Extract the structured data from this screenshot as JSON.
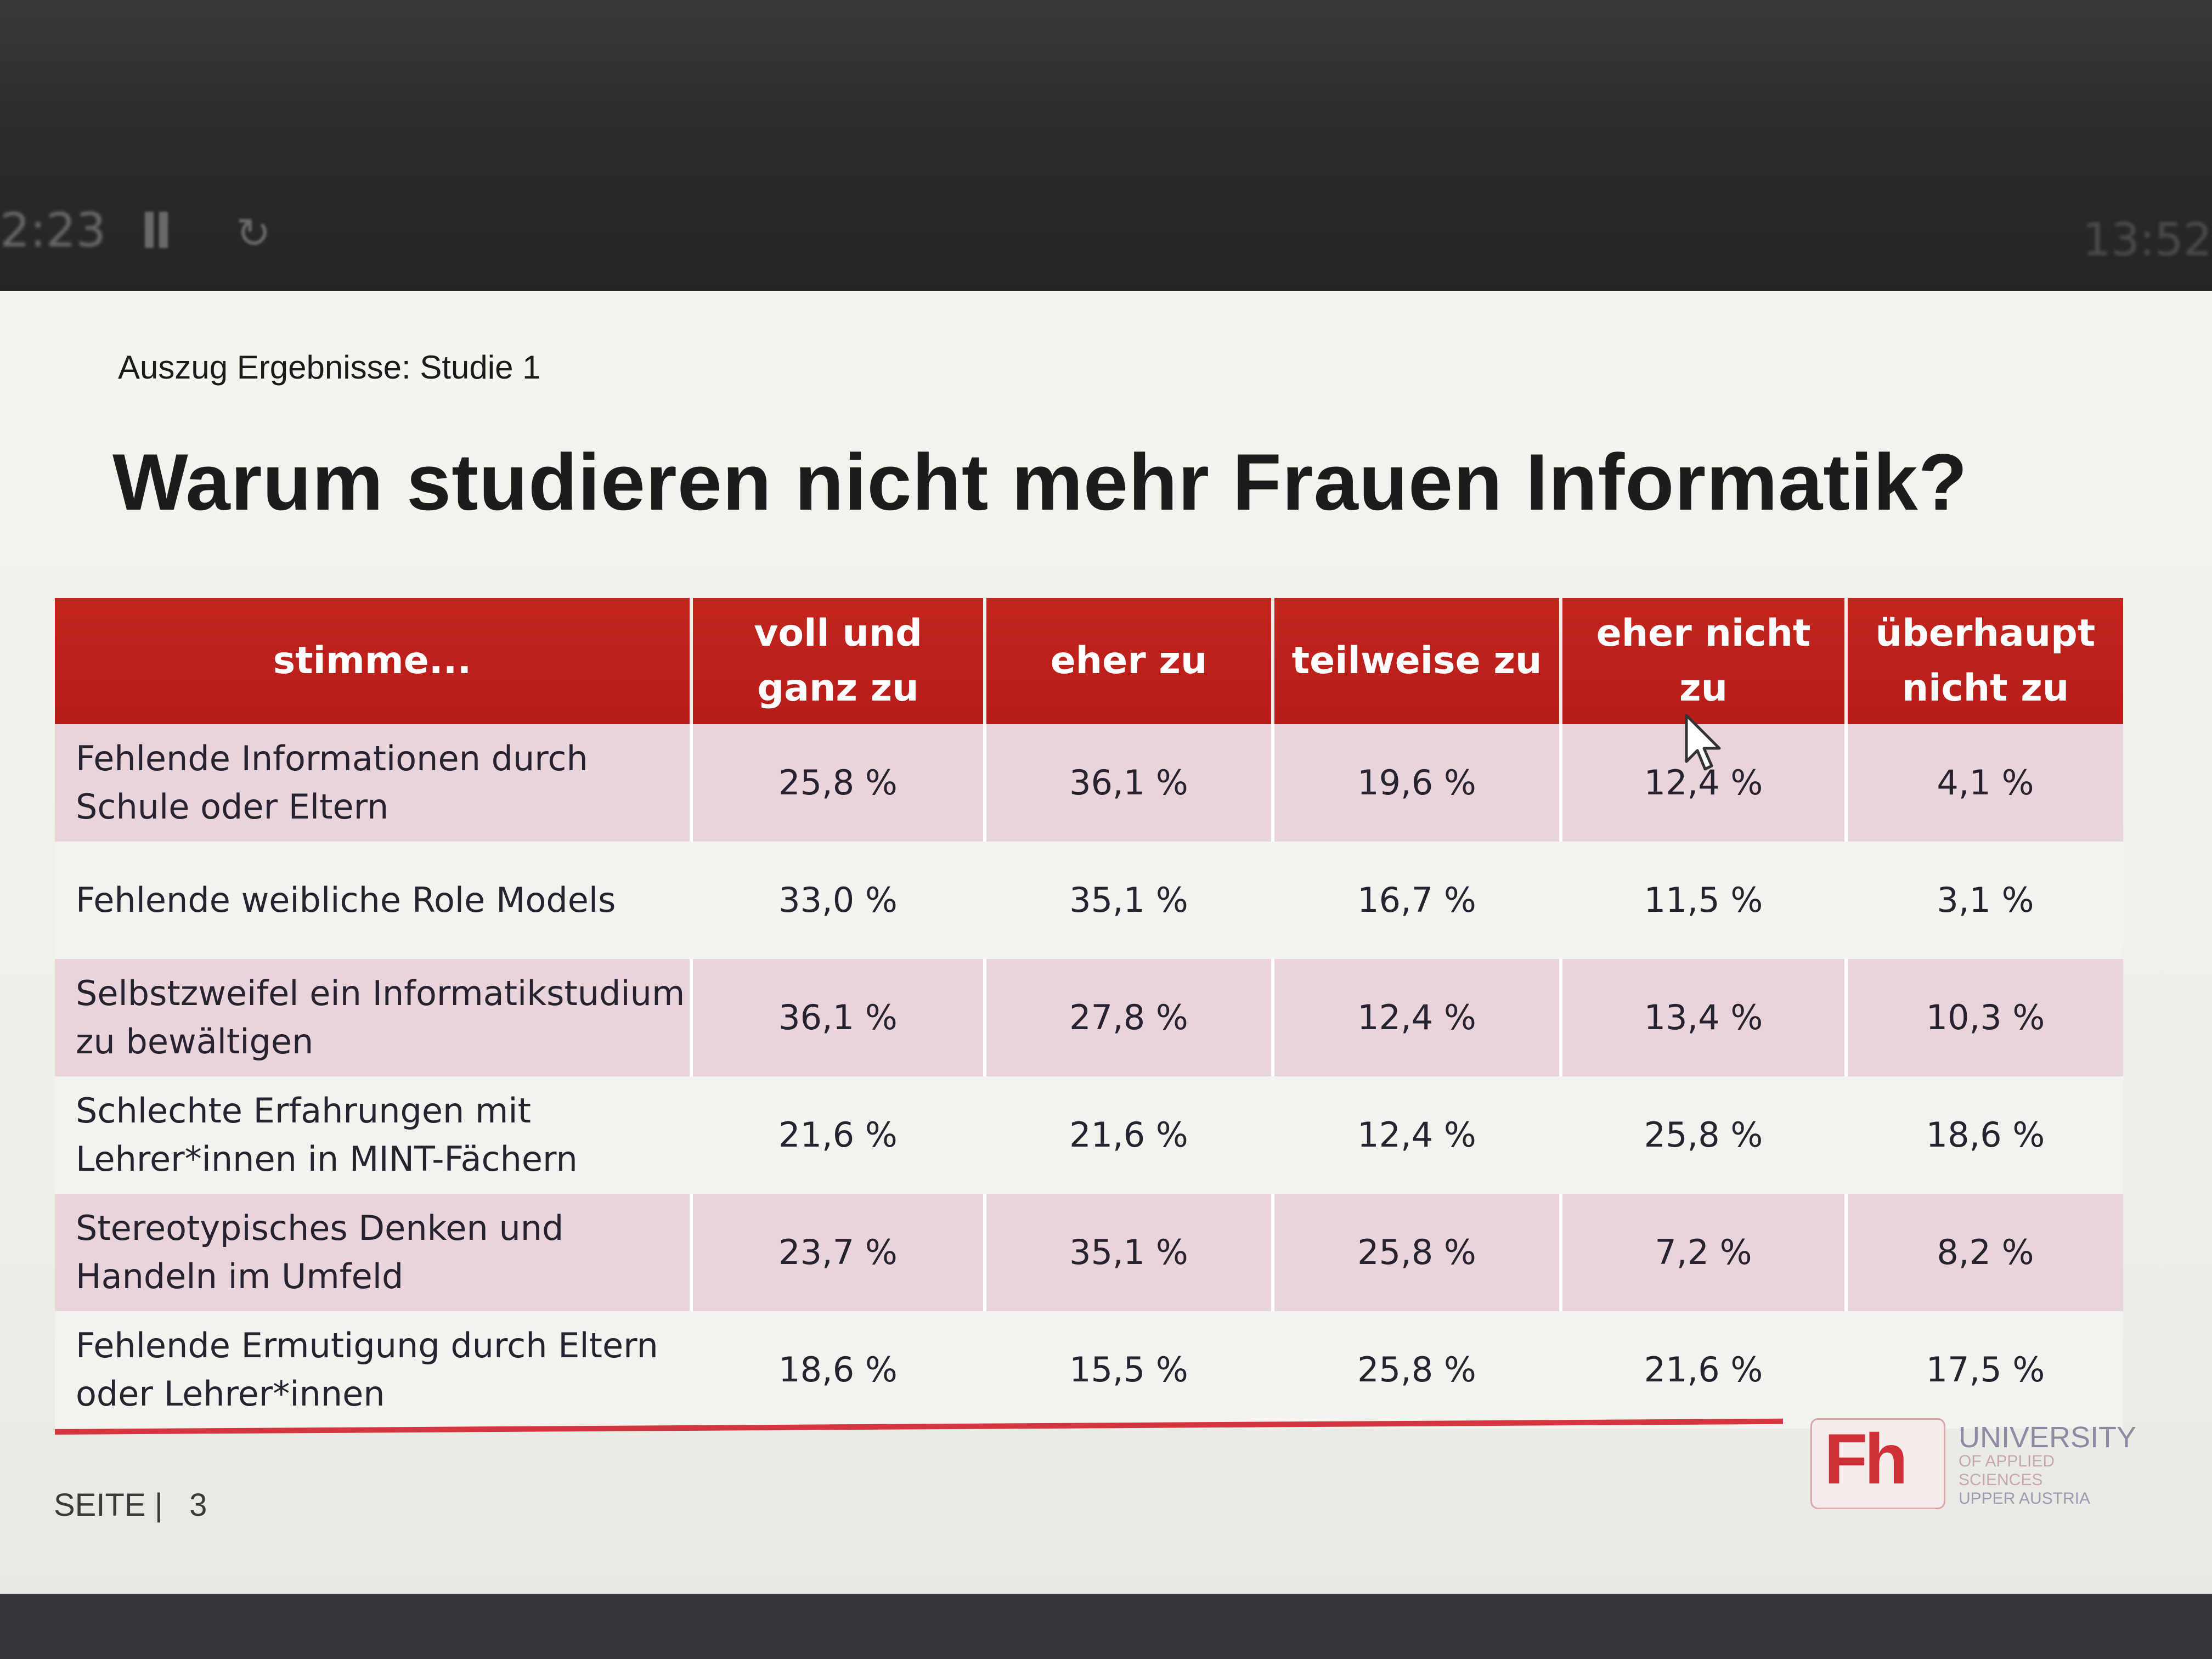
{
  "screen": {
    "top_blurred_text": [
      "",
      "",
      ""
    ],
    "media_time": "2:23",
    "right_time": "13:52",
    "icons": [
      "pause-icon",
      "loop-icon",
      "mouse-cursor-icon"
    ]
  },
  "slide": {
    "subtitle": "Auszug Ergebnisse: Studie 1",
    "title": "Warum studieren nicht mehr Frauen Informatik?",
    "table": {
      "headers": [
        "stimme...",
        "voll und ganz zu",
        "eher zu",
        "teilweise zu",
        "eher nicht zu",
        "überhaupt nicht zu"
      ],
      "rows": [
        {
          "label": "Fehlende Informationen durch Schule oder Eltern",
          "values": [
            "25,8 %",
            "36,1 %",
            "19,6 %",
            "12,4 %",
            "4,1 %"
          ]
        },
        {
          "label": "Fehlende weibliche Role Models",
          "values": [
            "33,0 %",
            "35,1 %",
            "16,7 %",
            "11,5 %",
            "3,1 %"
          ]
        },
        {
          "label": "Selbstzweifel ein Informatikstudium zu bewältigen",
          "values": [
            "36,1 %",
            "27,8 %",
            "12,4 %",
            "13,4 %",
            "10,3 %"
          ]
        },
        {
          "label": "Schlechte Erfahrungen mit Lehrer*innen in MINT-Fächern",
          "values": [
            "21,6 %",
            "21,6 %",
            "12,4 %",
            "25,8 %",
            "18,6 %"
          ]
        },
        {
          "label": "Stereotypisches Denken und Handeln im Umfeld",
          "values": [
            "23,7 %",
            "35,1 %",
            "25,8 %",
            "7,2 %",
            "8,2 %"
          ]
        },
        {
          "label": "Fehlende Ermutigung durch Eltern oder Lehrer*innen",
          "values": [
            "18,6 %",
            "15,5 %",
            "25,8 %",
            "21,6 %",
            "17,5 %"
          ]
        }
      ]
    },
    "footer": {
      "page_label": "SEITE |",
      "page_number": "3"
    },
    "logo": {
      "letters": "Fh",
      "line1": "UNIVERSITY",
      "line2": "OF APPLIED SCIENCES",
      "line3": "UPPER AUSTRIA"
    },
    "colors": {
      "header_red": "#c3241e",
      "row_shade": "#e8d4da",
      "accent_line": "#d4353f"
    }
  }
}
